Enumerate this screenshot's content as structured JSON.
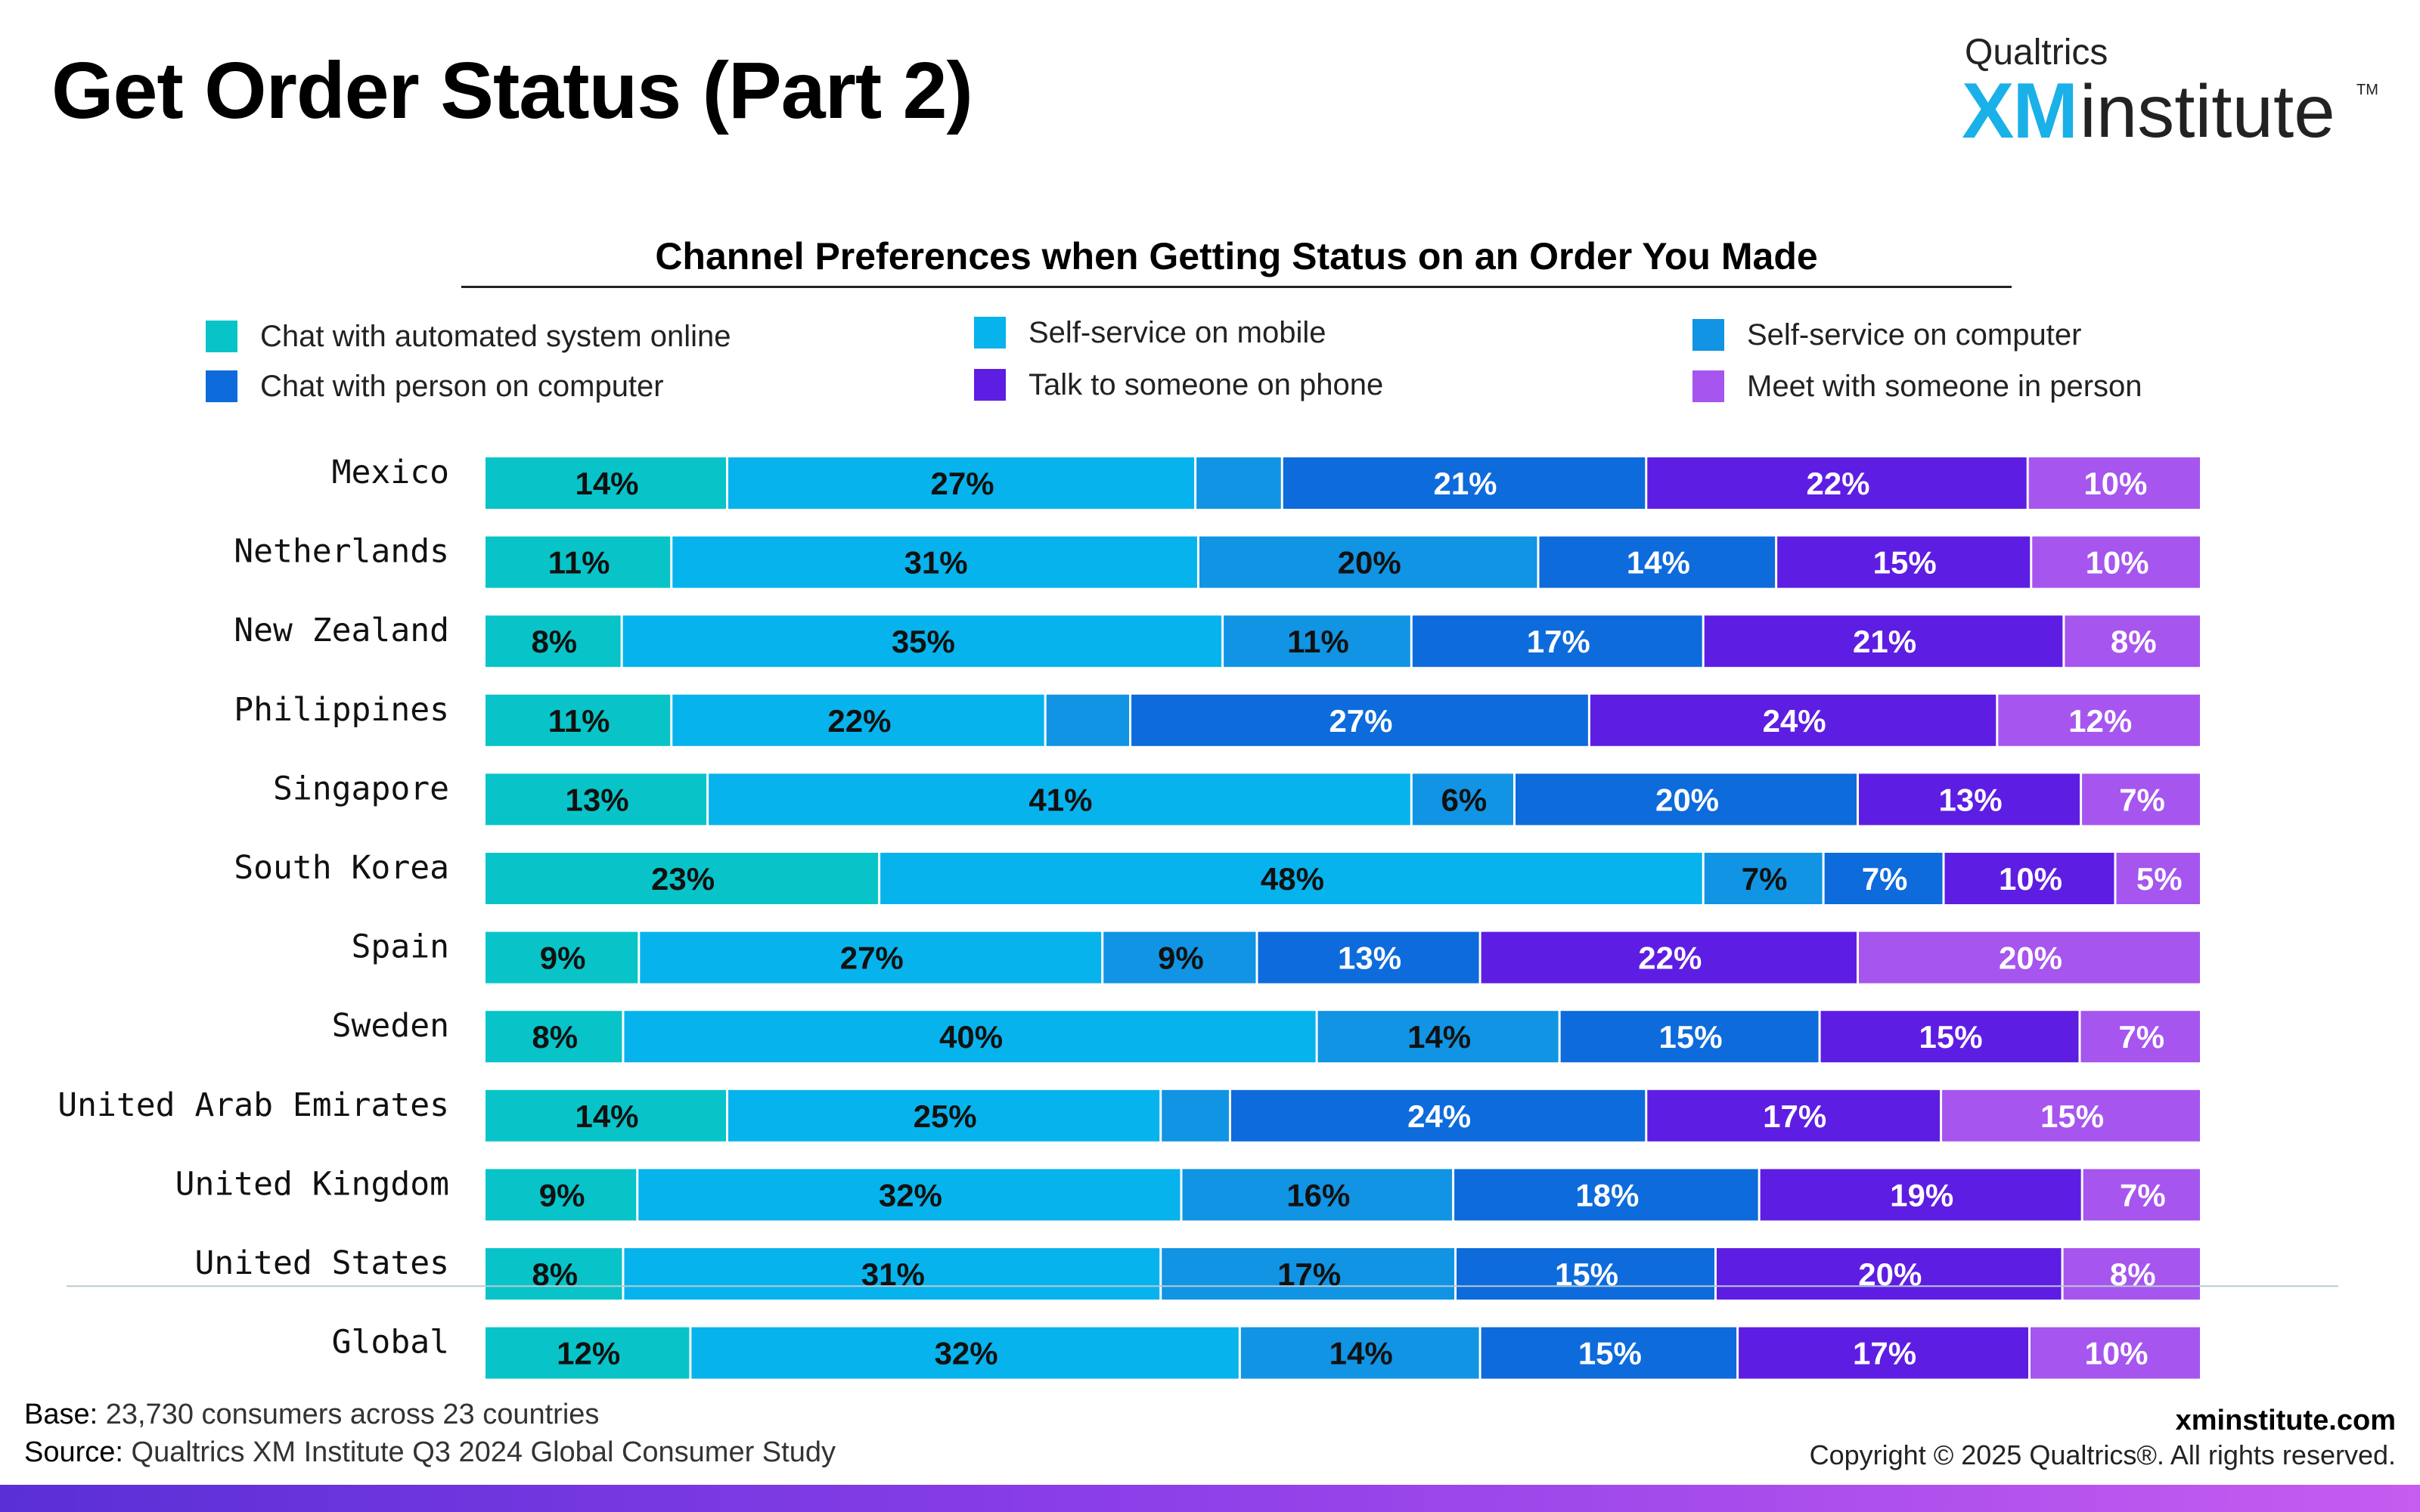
{
  "page": {
    "title": "Get Order Status (Part 2)",
    "logo": {
      "top": "Qualtrics",
      "xm": "XM",
      "institute": "institute",
      "tm": "TM"
    },
    "base_label": "Base:",
    "base_text": "23,730 consumers across 23 countries",
    "source_label": "Source:",
    "source_text": "Qualtrics XM Institute Q3 2024 Global Consumer Study",
    "site": "xminstitute.com",
    "copyright": "Copyright © 2025 Qualtrics®. All rights reserved."
  },
  "chart_data": {
    "type": "bar",
    "orientation": "horizontal",
    "stacked": true,
    "title": "Channel Preferences when Getting Status on an Order You Made",
    "xlim": [
      0,
      100
    ],
    "grid": false,
    "legend_placement": "top",
    "categories": [
      "Mexico",
      "Netherlands",
      "New Zealand",
      "Philippines",
      "Singapore",
      "South Korea",
      "Spain",
      "Sweden",
      "United Arab Emirates",
      "United Kingdom",
      "United States",
      "Global"
    ],
    "series": [
      {
        "name": "Chat with automated system online",
        "color": "#08c4c8",
        "label_color": "#111111",
        "values": [
          14,
          11,
          8,
          11,
          13,
          23,
          9,
          8,
          14,
          9,
          8,
          12
        ],
        "labels": [
          "14%",
          "11%",
          "8%",
          "11%",
          "13%",
          "23%",
          "9%",
          "8%",
          "14%",
          "9%",
          "8%",
          "12%"
        ]
      },
      {
        "name": "Self-service on mobile",
        "color": "#07b3ec",
        "label_color": "#111111",
        "values": [
          27,
          31,
          35,
          22,
          41,
          48,
          27,
          40,
          25,
          32,
          31,
          32
        ],
        "labels": [
          "27%",
          "31%",
          "35%",
          "22%",
          "41%",
          "48%",
          "27%",
          "40%",
          "25%",
          "32%",
          "31%",
          "32%"
        ]
      },
      {
        "name": "Self-service on computer",
        "color": "#1194e3",
        "label_color": "#111111",
        "values": [
          5,
          20,
          11,
          5,
          6,
          7,
          9,
          14,
          4,
          16,
          17,
          14
        ],
        "labels": [
          "",
          "20%",
          "11%",
          "",
          "6%",
          "7%",
          "9%",
          "14%",
          "",
          "16%",
          "17%",
          "14%"
        ]
      },
      {
        "name": "Chat with person on computer",
        "color": "#0d6bdc",
        "label_color": "#ffffff",
        "values": [
          21,
          14,
          17,
          27,
          20,
          7,
          13,
          15,
          24,
          18,
          15,
          15
        ],
        "labels": [
          "21%",
          "14%",
          "17%",
          "27%",
          "20%",
          "7%",
          "13%",
          "15%",
          "24%",
          "18%",
          "15%",
          "15%"
        ]
      },
      {
        "name": "Talk to someone on phone",
        "color": "#5e1de3",
        "label_color": "#ffffff",
        "values": [
          22,
          15,
          21,
          24,
          13,
          10,
          22,
          15,
          17,
          19,
          20,
          17
        ],
        "labels": [
          "22%",
          "15%",
          "21%",
          "24%",
          "13%",
          "10%",
          "22%",
          "15%",
          "17%",
          "19%",
          "20%",
          "17%"
        ]
      },
      {
        "name": "Meet with someone in person",
        "color": "#a655ee",
        "label_color": "#ffffff",
        "values": [
          10,
          10,
          8,
          12,
          7,
          5,
          20,
          7,
          15,
          7,
          8,
          10
        ],
        "labels": [
          "10%",
          "10%",
          "8%",
          "12%",
          "7%",
          "5%",
          "20%",
          "7%",
          "15%",
          "7%",
          "8%",
          "10%"
        ]
      }
    ]
  }
}
